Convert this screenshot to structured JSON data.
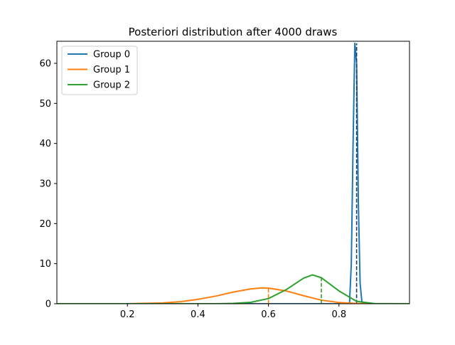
{
  "chart_data": {
    "type": "line",
    "title": "Posteriori distribution after 4000 draws",
    "xlabel": "",
    "ylabel": "",
    "xlim": [
      0.0,
      1.0
    ],
    "ylim": [
      0,
      65.5
    ],
    "x_ticks": [
      0.2,
      0.4,
      0.6,
      0.8
    ],
    "x_tick_labels": [
      "0.2",
      "0.4",
      "0.6",
      "0.8"
    ],
    "y_ticks": [
      0,
      10,
      20,
      30,
      40,
      50,
      60
    ],
    "y_tick_labels": [
      "0",
      "10",
      "20",
      "30",
      "40",
      "50",
      "60"
    ],
    "grid": false,
    "legend_position": "top-left",
    "series": [
      {
        "name": "Group 0",
        "color": "#1f77b4",
        "x": [
          0.0,
          0.8,
          0.825,
          0.83,
          0.835,
          0.84,
          0.845,
          0.85,
          0.855,
          0.86,
          0.865,
          0.87,
          0.875,
          0.9,
          1.0
        ],
        "y": [
          0,
          0,
          0,
          0.3,
          10,
          40,
          65,
          60,
          25,
          5,
          0.5,
          0.1,
          0,
          0,
          0
        ],
        "true_value": 0.85,
        "true_value_height": 65
      },
      {
        "name": "Group 1",
        "color": "#ff7f0e",
        "x": [
          0.0,
          0.2,
          0.3,
          0.35,
          0.4,
          0.45,
          0.5,
          0.55,
          0.58,
          0.6,
          0.65,
          0.7,
          0.75,
          0.8,
          0.85,
          0.9,
          1.0
        ],
        "y": [
          0,
          0,
          0.2,
          0.5,
          1.1,
          1.9,
          2.9,
          3.7,
          3.95,
          3.9,
          3.2,
          2.0,
          0.9,
          0.3,
          0.07,
          0.01,
          0
        ],
        "true_value": 0.6,
        "true_value_height": 3.9
      },
      {
        "name": "Group 2",
        "color": "#2ca02c",
        "x": [
          0.0,
          0.45,
          0.5,
          0.55,
          0.6,
          0.65,
          0.7,
          0.725,
          0.75,
          0.8,
          0.85,
          0.9,
          1.0
        ],
        "y": [
          0,
          0,
          0.1,
          0.35,
          1.3,
          3.5,
          6.4,
          7.2,
          6.5,
          3.2,
          0.6,
          0.04,
          0
        ],
        "true_value": 0.75,
        "true_value_height": 6.5
      }
    ]
  }
}
